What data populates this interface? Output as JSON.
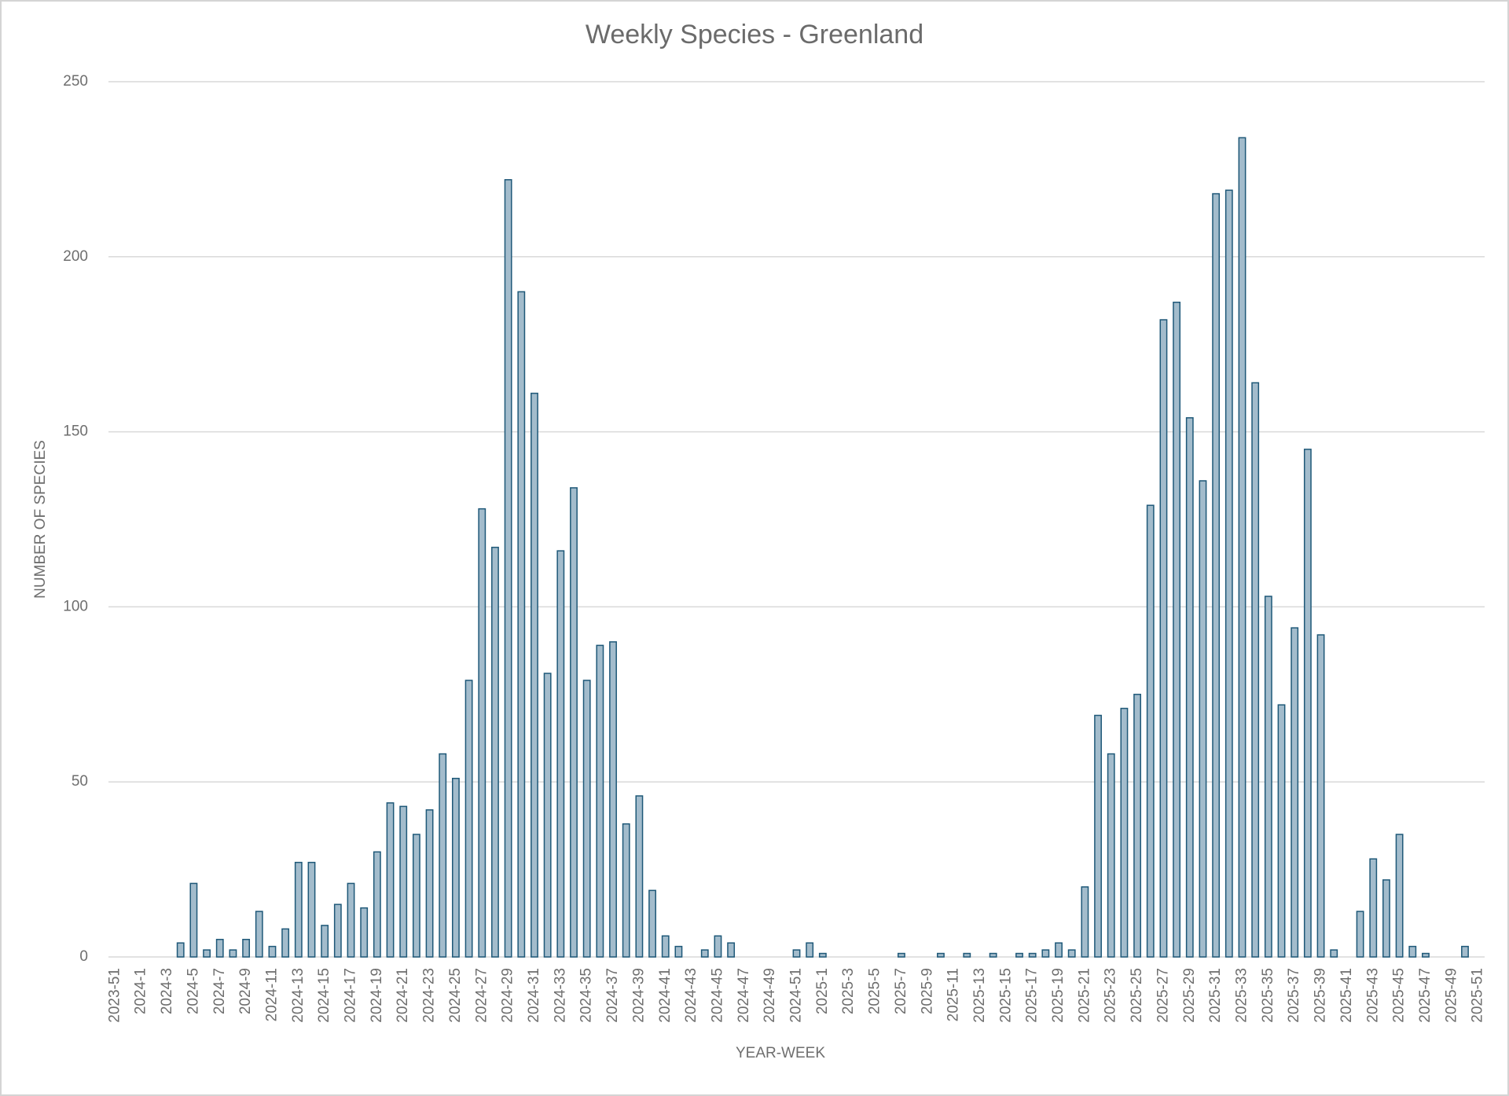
{
  "chart_data": {
    "type": "bar",
    "title": "Weekly Species - Greenland",
    "x_label": "YEAR-WEEK",
    "y_label": "NUMBER OF SPECIES",
    "categories": [
      "2023-51",
      null,
      "2024-1",
      null,
      "2024-3",
      null,
      "2024-5",
      null,
      "2024-7",
      null,
      "2024-9",
      null,
      "2024-11",
      null,
      "2024-13",
      null,
      "2024-15",
      null,
      "2024-17",
      null,
      "2024-19",
      null,
      "2024-21",
      null,
      "2024-23",
      null,
      "2024-25",
      null,
      "2024-27",
      null,
      "2024-29",
      null,
      "2024-31",
      null,
      "2024-33",
      null,
      "2024-35",
      null,
      "2024-37",
      null,
      "2024-39",
      null,
      "2024-41",
      null,
      "2024-43",
      null,
      "2024-45",
      null,
      "2024-47",
      null,
      "2024-49",
      null,
      "2024-51",
      null,
      "2025-1",
      null,
      "2025-3",
      null,
      "2025-5",
      null,
      "2025-7",
      null,
      "2025-9",
      null,
      "2025-11",
      null,
      "2025-13",
      null,
      "2025-15",
      null,
      "2025-17",
      null,
      "2025-19",
      null,
      "2025-21",
      null,
      "2025-23",
      null,
      "2025-25",
      null,
      "2025-27",
      null,
      "2025-29",
      null,
      "2025-31",
      null,
      "2025-33",
      null,
      "2025-35",
      null,
      "2025-37",
      null,
      "2025-39",
      null,
      "2025-41",
      null,
      "2025-43",
      null,
      "2025-45",
      null,
      "2025-47",
      null,
      "2025-49",
      null,
      "2025-51"
    ],
    "values": [
      null,
      null,
      null,
      null,
      null,
      4,
      21,
      2,
      5,
      2,
      5,
      13,
      3,
      8,
      27,
      27,
      9,
      15,
      21,
      14,
      30,
      44,
      43,
      35,
      42,
      58,
      51,
      79,
      128,
      117,
      222,
      190,
      161,
      81,
      116,
      134,
      79,
      89,
      90,
      38,
      46,
      19,
      6,
      3,
      null,
      2,
      6,
      4,
      null,
      null,
      null,
      null,
      2,
      4,
      1,
      null,
      null,
      null,
      null,
      null,
      1,
      null,
      null,
      1,
      null,
      1,
      null,
      1,
      null,
      1,
      1,
      2,
      4,
      2,
      20,
      69,
      58,
      71,
      75,
      129,
      182,
      187,
      154,
      136,
      218,
      219,
      234,
      164,
      103,
      72,
      94,
      145,
      92,
      2,
      null,
      13,
      28,
      22,
      35,
      3,
      1,
      null,
      null,
      3,
      null
    ],
    "color": "#a3bccc",
    "edge_color": "#1e5878",
    "ylim": [
      0,
      250
    ],
    "yticks": [
      0,
      50,
      100,
      150,
      200,
      250
    ],
    "grid": true
  }
}
